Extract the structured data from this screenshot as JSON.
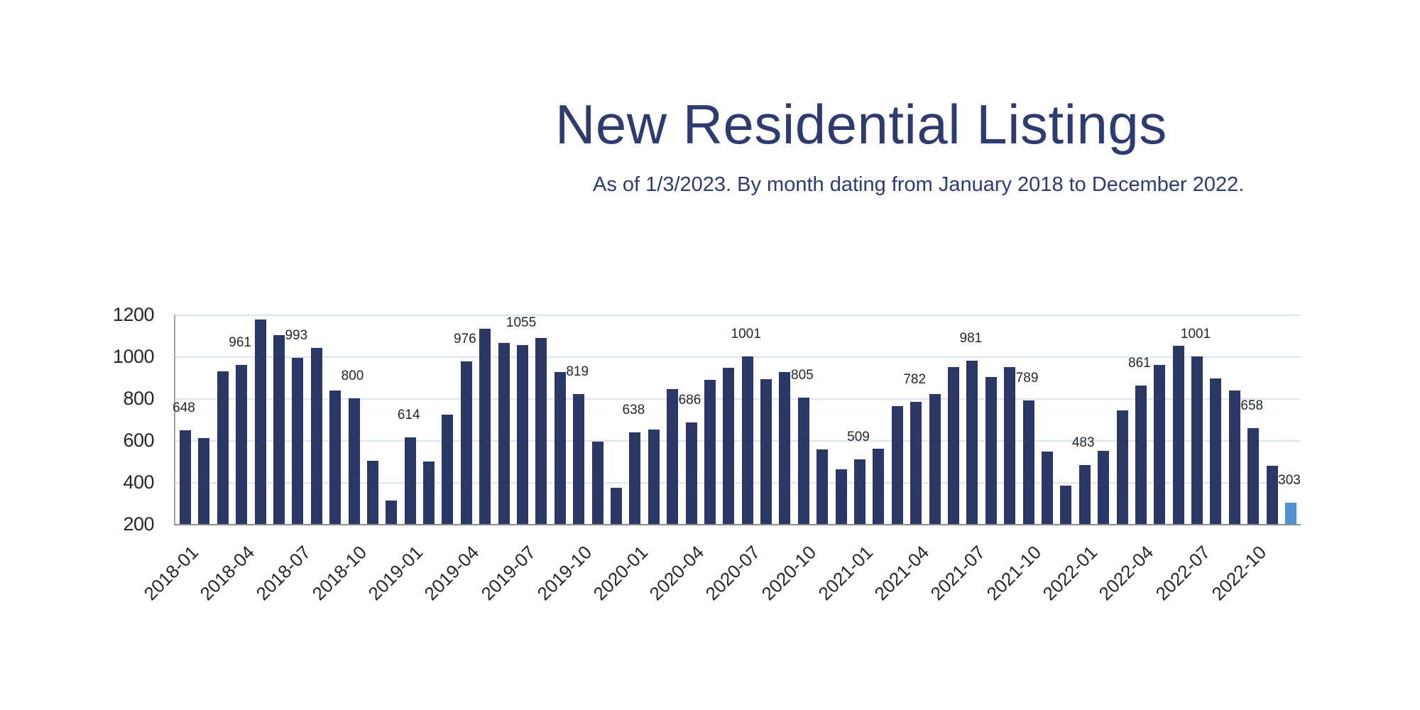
{
  "header": {
    "title": "New Residential Listings",
    "subtitle": "As of 1/3/2023. By month dating from January 2018 to December 2022."
  },
  "chart_data": {
    "type": "bar",
    "title": "New Residential Listings",
    "subtitle": "As of 1/3/2023. By month dating from January 2018 to December 2022.",
    "x": [
      "2018-01",
      "2018-02",
      "2018-03",
      "2018-04",
      "2018-05",
      "2018-06",
      "2018-07",
      "2018-08",
      "2018-09",
      "2018-10",
      "2018-11",
      "2018-12",
      "2019-01",
      "2019-02",
      "2019-03",
      "2019-04",
      "2019-05",
      "2019-06",
      "2019-07",
      "2019-08",
      "2019-09",
      "2019-10",
      "2019-11",
      "2019-12",
      "2020-01",
      "2020-02",
      "2020-03",
      "2020-04",
      "2020-05",
      "2020-06",
      "2020-07",
      "2020-08",
      "2020-09",
      "2020-10",
      "2020-11",
      "2020-12",
      "2021-01",
      "2021-02",
      "2021-03",
      "2021-04",
      "2021-05",
      "2021-06",
      "2021-07",
      "2021-08",
      "2021-09",
      "2021-10",
      "2021-11",
      "2021-12",
      "2022-01",
      "2022-02",
      "2022-03",
      "2022-04",
      "2022-05",
      "2022-06",
      "2022-07",
      "2022-08",
      "2022-09",
      "2022-10",
      "2022-11",
      "2022-12"
    ],
    "values": [
      648,
      610,
      928,
      961,
      1175,
      1100,
      993,
      1040,
      838,
      800,
      500,
      312,
      614,
      498,
      722,
      976,
      1132,
      1064,
      1055,
      1087,
      924,
      819,
      592,
      372,
      638,
      650,
      843,
      686,
      889,
      947,
      1001,
      890,
      925,
      805,
      555,
      462,
      509,
      558,
      763,
      782,
      822,
      949,
      981,
      903,
      948,
      789,
      546,
      383,
      483,
      549,
      744,
      861,
      959,
      1050,
      1001,
      894,
      836,
      658,
      478,
      303
    ],
    "data_label_indices": [
      0,
      3,
      6,
      9,
      12,
      15,
      18,
      21,
      24,
      27,
      30,
      33,
      36,
      39,
      42,
      45,
      48,
      51,
      54,
      57,
      59
    ],
    "x_tick_indices": [
      0,
      3,
      6,
      9,
      12,
      15,
      18,
      21,
      24,
      27,
      30,
      33,
      36,
      39,
      42,
      45,
      48,
      51,
      54,
      57
    ],
    "ylim": [
      200,
      1200
    ],
    "yticks": [
      200,
      400,
      600,
      800,
      1000,
      1200
    ],
    "grid": true,
    "legend": false,
    "highlight_index": 59,
    "colors": {
      "bar": "#2b3765",
      "highlight": "#4f93d5",
      "gridline": "#dce5f1",
      "axis": "#a8a8a8",
      "label_text": "#272727",
      "title_text": "#2e3b6f"
    }
  }
}
